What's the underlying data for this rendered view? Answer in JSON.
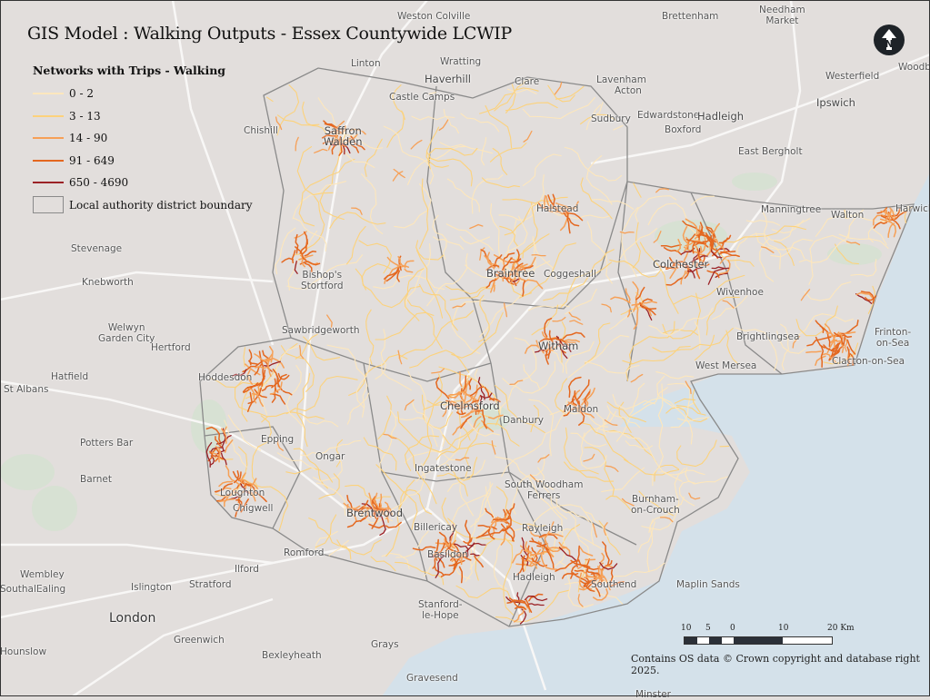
{
  "title": "GIS Model : Walking Outputs - Essex Countywide LCWIP",
  "legend": {
    "title": "Networks with Trips - Walking",
    "classes": [
      {
        "label": "0 - 2",
        "color": "#fde7bd"
      },
      {
        "label": "3 - 13",
        "color": "#fcd27c"
      },
      {
        "label": "14 - 90",
        "color": "#f6a057"
      },
      {
        "label": "91 - 649",
        "color": "#e4671f"
      },
      {
        "label": "650 - 4690",
        "color": "#9b2226"
      }
    ],
    "boundary_label": "Local authority district boundary"
  },
  "colors": {
    "land": "#e2dedc",
    "sea": "#d4e1ea",
    "boundary": "#8a8a8a",
    "road": "#f7f6f5",
    "green": "#d3e3cf"
  },
  "north_arrow": {
    "label": "N",
    "icon": "north-arrow-icon"
  },
  "scale_bar": {
    "labels": [
      "10",
      "5",
      "0",
      "10",
      "20 Km"
    ]
  },
  "copyright": "Contains OS data © Crown copyright and database right 2025.",
  "places": [
    "Weston Colville",
    "Brettenham",
    "Needham Market",
    "Linton",
    "Wratting",
    "Haverhill",
    "Clare",
    "Lavenham",
    "Westerfield",
    "Woodbridge",
    "Ipswich",
    "Castle Camps",
    "Acton",
    "Chishill",
    "Saffron Walden",
    "Sudbury",
    "Edwardstone",
    "Hadleigh",
    "Boxford",
    "East Bergholt",
    "Manningtree",
    "Harwich",
    "Walton",
    "Halstead",
    "Stevenage",
    "Colchester",
    "Braintree",
    "Coggeshall",
    "Knebworth",
    "Bishop's Stortford",
    "Wivenhoe",
    "Sawbridgeworth",
    "Frinton-on-Sea",
    "Welwyn Garden City",
    "Hertford",
    "Witham",
    "Brightlingsea",
    "Clacton-on-Sea",
    "Hatfield",
    "Hoddesdon",
    "St Albans",
    "West Mersea",
    "Chelmsford",
    "Maldon",
    "Danbury",
    "Potters Bar",
    "Epping",
    "Ongar",
    "Ingatestone",
    "Barnet",
    "South Woodham Ferrers",
    "Burnham-on-Crouch",
    "Loughton",
    "Chigwell",
    "Brentwood",
    "Billericay",
    "Rayleigh",
    "Romford",
    "Ilford",
    "Basildon",
    "Wembley",
    "Islington",
    "Stratford",
    "Hadleigh",
    "Southend",
    "Maplin Sands",
    "London",
    "Ealing",
    "Stanford-le-Hope",
    "Greenwich",
    "Bexleyheath",
    "Grays",
    "Gravesend",
    "Minster",
    "Southall",
    "Hounslow"
  ]
}
